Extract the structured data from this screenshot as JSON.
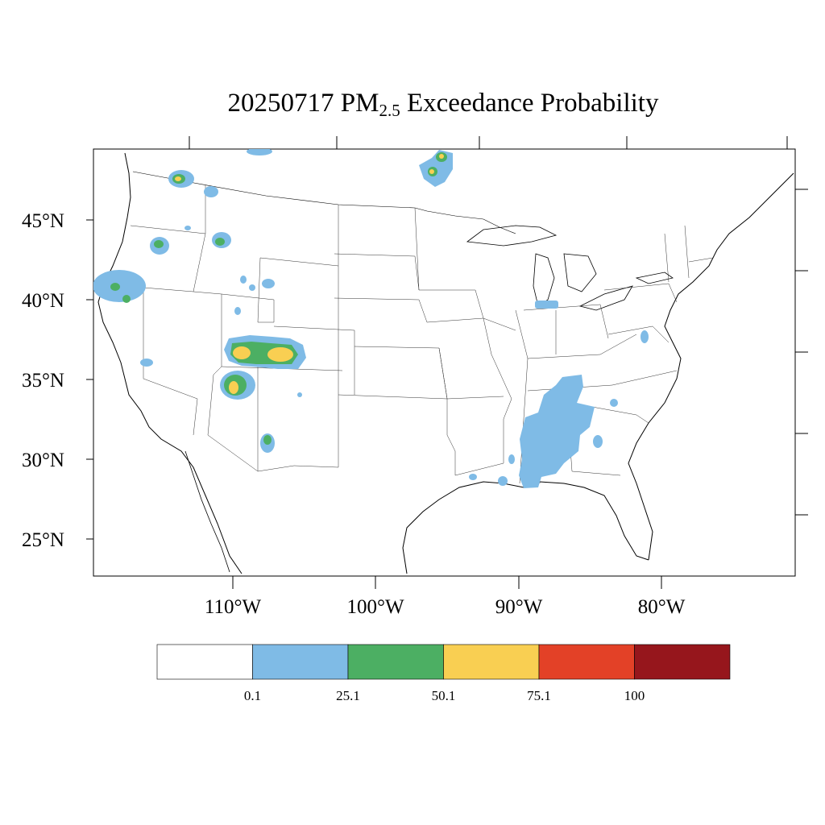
{
  "title": {
    "prefix": "20250717 PM",
    "subscript": "2.5",
    "suffix": " Exceedance Probability"
  },
  "map": {
    "region": "Contiguous United States",
    "lat_labels": [
      "45°N",
      "40°N",
      "35°N",
      "30°N",
      "25°N"
    ],
    "lon_labels": [
      "110°W",
      "100°W",
      "90°W",
      "80°W"
    ],
    "lat_range": [
      22.5,
      49.5
    ],
    "lon_range": [
      -119.6,
      -75.1
    ],
    "probability_areas": [
      {
        "name": "NW Washington",
        "class": "0.1-25.1",
        "peak_class": "50.1-75.1"
      },
      {
        "name": "NE Washington",
        "class": "0.1-25.1"
      },
      {
        "name": "Central Oregon",
        "class": "0.1-25.1",
        "peak_class": "25.1-50.1"
      },
      {
        "name": "Central Idaho",
        "class": "0.1-25.1",
        "peak_class": "25.1-50.1"
      },
      {
        "name": "Northern California",
        "class": "0.1-25.1",
        "peak_class": "25.1-50.1"
      },
      {
        "name": "Southern Utah / Colorado",
        "class": "0.1-25.1",
        "peak_class": "50.1-75.1"
      },
      {
        "name": "Northern Arizona",
        "class": "0.1-25.1",
        "peak_class": "50.1-75.1"
      },
      {
        "name": "Southern New Mexico",
        "class": "0.1-25.1",
        "peak_class": "25.1-50.1"
      },
      {
        "name": "Northern Minnesota border",
        "class": "0.1-25.1",
        "peak_class": "50.1-75.1"
      },
      {
        "name": "Northern Indiana",
        "class": "0.1-25.1"
      },
      {
        "name": "Alabama / Tennessee",
        "class": "0.1-25.1"
      },
      {
        "name": "Virginia",
        "class": "0.1-25.1"
      }
    ]
  },
  "colorbar": {
    "labels": [
      "0.1",
      "25.1",
      "50.1",
      "75.1",
      "100"
    ],
    "colors": [
      "#ffffff",
      "#7fbbe6",
      "#4caf63",
      "#f9cf52",
      "#e34127",
      "#96161c"
    ]
  }
}
